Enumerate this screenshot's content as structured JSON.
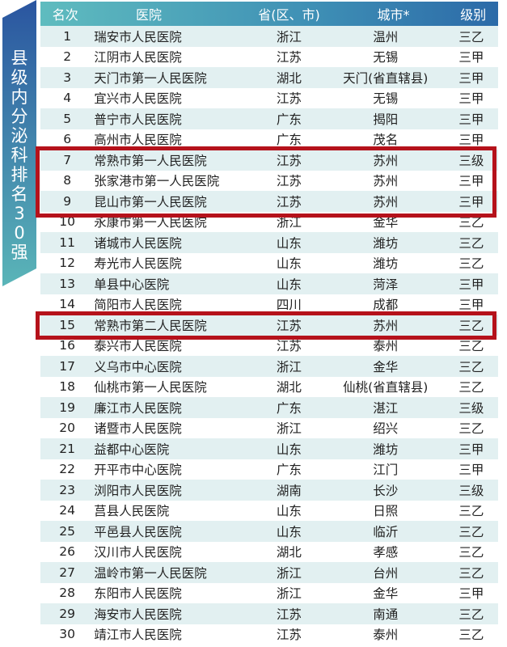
{
  "banner": {
    "title_chars": [
      "县",
      "级",
      "内",
      "分",
      "泌",
      "科",
      "排",
      "名",
      "3",
      "0",
      "强"
    ]
  },
  "header": {
    "rank": "名次",
    "hospital": "医院",
    "province": "省(区、市)",
    "city": "城市*",
    "level": "级别"
  },
  "colors": {
    "banner_top": "#2a55a0",
    "banner_bottom": "#5ab5b8",
    "highlight": "#b5121b",
    "stripe": "#e2f0f1"
  },
  "rows": [
    {
      "rank": "1",
      "hospital": "瑞安市人民医院",
      "province": "浙江",
      "city": "温州",
      "level": "三乙"
    },
    {
      "rank": "2",
      "hospital": "江阴市人民医院",
      "province": "江苏",
      "city": "无锡",
      "level": "三甲"
    },
    {
      "rank": "3",
      "hospital": "天门市第一人民医院",
      "province": "湖北",
      "city": "天门(省直辖县)",
      "level": "三甲"
    },
    {
      "rank": "4",
      "hospital": "宜兴市人民医院",
      "province": "江苏",
      "city": "无锡",
      "level": "三甲"
    },
    {
      "rank": "5",
      "hospital": "普宁市人民医院",
      "province": "广东",
      "city": "揭阳",
      "level": "三甲"
    },
    {
      "rank": "6",
      "hospital": "高州市人民医院",
      "province": "广东",
      "city": "茂名",
      "level": "三甲"
    },
    {
      "rank": "7",
      "hospital": "常熟市第一人民医院",
      "province": "江苏",
      "city": "苏州",
      "level": "三级"
    },
    {
      "rank": "8",
      "hospital": "张家港市第一人民医院",
      "province": "江苏",
      "city": "苏州",
      "level": "三甲"
    },
    {
      "rank": "9",
      "hospital": "昆山市第一人民医院",
      "province": "江苏",
      "city": "苏州",
      "level": "三甲"
    },
    {
      "rank": "10",
      "hospital": "永康市第一人民医院",
      "province": "浙江",
      "city": "金华",
      "level": "三乙"
    },
    {
      "rank": "11",
      "hospital": "诸城市人民医院",
      "province": "山东",
      "city": "潍坊",
      "level": "三乙"
    },
    {
      "rank": "12",
      "hospital": "寿光市人民医院",
      "province": "山东",
      "city": "潍坊",
      "level": "三乙"
    },
    {
      "rank": "13",
      "hospital": "单县中心医院",
      "province": "山东",
      "city": "菏泽",
      "level": "三甲"
    },
    {
      "rank": "14",
      "hospital": "简阳市人民医院",
      "province": "四川",
      "city": "成都",
      "level": "三甲"
    },
    {
      "rank": "15",
      "hospital": "常熟市第二人民医院",
      "province": "江苏",
      "city": "苏州",
      "level": "三乙"
    },
    {
      "rank": "16",
      "hospital": "泰兴市人民医院",
      "province": "江苏",
      "city": "泰州",
      "level": "三乙"
    },
    {
      "rank": "17",
      "hospital": "义乌市中心医院",
      "province": "浙江",
      "city": "金华",
      "level": "三乙"
    },
    {
      "rank": "18",
      "hospital": "仙桃市第一人民医院",
      "province": "湖北",
      "city": "仙桃(省直辖县)",
      "level": "三乙"
    },
    {
      "rank": "19",
      "hospital": "廉江市人民医院",
      "province": "广东",
      "city": "湛江",
      "level": "三级"
    },
    {
      "rank": "20",
      "hospital": "诸暨市人民医院",
      "province": "浙江",
      "city": "绍兴",
      "level": "三乙"
    },
    {
      "rank": "21",
      "hospital": "益都中心医院",
      "province": "山东",
      "city": "潍坊",
      "level": "三甲"
    },
    {
      "rank": "22",
      "hospital": "开平市中心医院",
      "province": "广东",
      "city": "江门",
      "level": "三甲"
    },
    {
      "rank": "23",
      "hospital": "浏阳市人民医院",
      "province": "湖南",
      "city": "长沙",
      "level": "三级"
    },
    {
      "rank": "24",
      "hospital": "莒县人民医院",
      "province": "山东",
      "city": "日照",
      "level": "三乙"
    },
    {
      "rank": "25",
      "hospital": "平邑县人民医院",
      "province": "山东",
      "city": "临沂",
      "level": "三乙"
    },
    {
      "rank": "26",
      "hospital": "汉川市人民医院",
      "province": "湖北",
      "city": "孝感",
      "level": "三乙"
    },
    {
      "rank": "27",
      "hospital": "温岭市第一人民医院",
      "province": "浙江",
      "city": "台州",
      "level": "三乙"
    },
    {
      "rank": "28",
      "hospital": "东阳市人民医院",
      "province": "浙江",
      "city": "金华",
      "level": "三甲"
    },
    {
      "rank": "29",
      "hospital": "海安市人民医院",
      "province": "江苏",
      "city": "南通",
      "level": "三乙"
    },
    {
      "rank": "30",
      "hospital": "靖江市人民医院",
      "province": "江苏",
      "city": "泰州",
      "level": "三乙"
    }
  ]
}
